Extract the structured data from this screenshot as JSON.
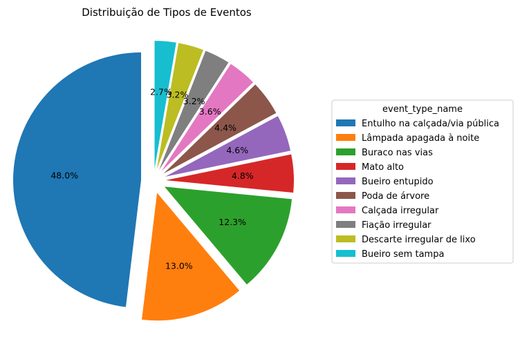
{
  "chart_data": {
    "type": "pie",
    "title": "Distribuição de Tipos de Eventos",
    "legend_title": "event_type_name",
    "legend_position": "right",
    "start_angle": 90,
    "direction": "counterclockwise",
    "exploded": true,
    "slices": [
      {
        "label": "Entulho na calçada/via pública",
        "value": 48.0,
        "pct_label": "48.0%",
        "color": "#1f77b4"
      },
      {
        "label": "Lâmpada apagada à noite",
        "value": 13.0,
        "pct_label": "13.0%",
        "color": "#ff7f0e"
      },
      {
        "label": "Buraco nas vias",
        "value": 12.3,
        "pct_label": "12.3%",
        "color": "#2ca02c"
      },
      {
        "label": "Mato alto",
        "value": 4.8,
        "pct_label": "4.8%",
        "color": "#d62728"
      },
      {
        "label": "Bueiro entupido",
        "value": 4.6,
        "pct_label": "4.6%",
        "color": "#9467bd"
      },
      {
        "label": "Poda de árvore",
        "value": 4.4,
        "pct_label": "4.4%",
        "color": "#8c564b"
      },
      {
        "label": "Calçada irregular",
        "value": 3.6,
        "pct_label": "3.6%",
        "color": "#e377c2"
      },
      {
        "label": "Fiação irregular",
        "value": 3.2,
        "pct_label": "3.2%",
        "color": "#7f7f7f"
      },
      {
        "label": "Descarte irregular de lixo",
        "value": 3.2,
        "pct_label": "3.2%",
        "color": "#bcbd22"
      },
      {
        "label": "Bueiro sem tampa",
        "value": 2.7,
        "pct_label": "2.7%",
        "color": "#17becf"
      }
    ]
  }
}
